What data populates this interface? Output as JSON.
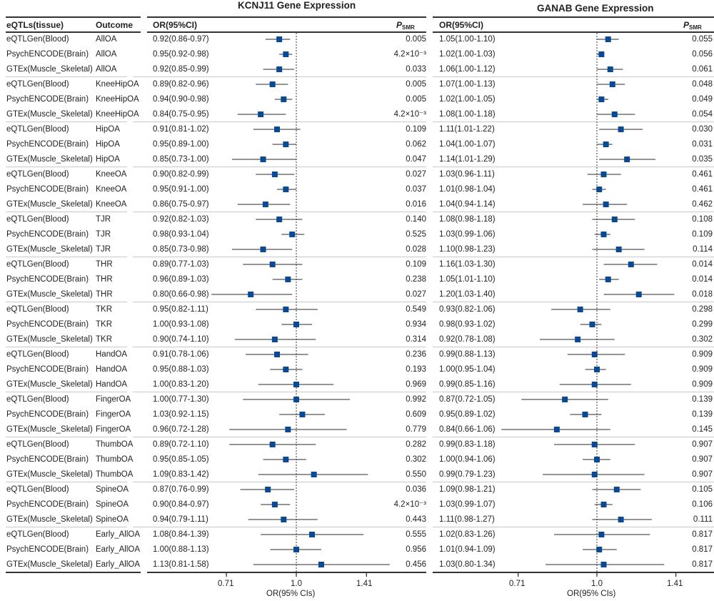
{
  "chart_data": {
    "type": "forest",
    "scale": "log",
    "reference_line": 1.0,
    "marker_color": "#0a4a94",
    "columns": {
      "tissue": "eQTLs(tissue)",
      "outcome": "Outcome",
      "or": "OR(95%CI)",
      "p": "P",
      "p_sub": "SMR"
    },
    "panels": [
      {
        "title": "KCNJ11 Gene Expression",
        "xlabel": "OR(95% CIs)",
        "ticks": [
          0.71,
          1.0,
          1.41
        ],
        "tick_labels": [
          "0.71",
          "1.0",
          "1.41"
        ]
      },
      {
        "title": "GANAB Gene Expression",
        "xlabel": "OR(95% CIs)",
        "ticks": [
          0.71,
          1.0,
          1.41
        ],
        "tick_labels": [
          "0.71",
          "1.0",
          "1.41"
        ]
      }
    ],
    "rows": [
      {
        "tissue": "eQTLGen(Blood)",
        "outcome": "AllOA",
        "k": {
          "or": 0.92,
          "lo": 0.86,
          "hi": 0.97,
          "label": "0.92(0.86-0.97)",
          "p": "0.005"
        },
        "g": {
          "or": 1.05,
          "lo": 1.0,
          "hi": 1.1,
          "label": "1.05(1.00-1.10)",
          "p": "0.055"
        }
      },
      {
        "tissue": "PsychENCODE(Brain)",
        "outcome": "AllOA",
        "k": {
          "or": 0.95,
          "lo": 0.92,
          "hi": 0.98,
          "label": "0.95(0.92-0.98)",
          "p": "4.2×10⁻³"
        },
        "g": {
          "or": 1.02,
          "lo": 1.0,
          "hi": 1.03,
          "label": "1.02(1.00-1.03)",
          "p": "0.056"
        }
      },
      {
        "tissue": "GTEx(Muscle_Skeletal)",
        "outcome": "AllOA",
        "k": {
          "or": 0.92,
          "lo": 0.85,
          "hi": 0.99,
          "label": "0.92(0.85-0.99)",
          "p": "0.033"
        },
        "g": {
          "or": 1.06,
          "lo": 1.0,
          "hi": 1.12,
          "label": "1.06(1.00-1.12)",
          "p": "0.061"
        }
      },
      {
        "tissue": "eQTLGen(Blood)",
        "outcome": "KneeHipOA",
        "k": {
          "or": 0.89,
          "lo": 0.82,
          "hi": 0.96,
          "label": "0.89(0.82-0.96)",
          "p": "0.005"
        },
        "g": {
          "or": 1.07,
          "lo": 1.0,
          "hi": 1.13,
          "label": "1.07(1.00-1.13)",
          "p": "0.048"
        }
      },
      {
        "tissue": "PsychENCODE(Brain)",
        "outcome": "KneeHipOA",
        "k": {
          "or": 0.94,
          "lo": 0.9,
          "hi": 0.98,
          "label": "0.94(0.90-0.98)",
          "p": "0.005"
        },
        "g": {
          "or": 1.02,
          "lo": 1.0,
          "hi": 1.05,
          "label": "1.02(1.00-1.05)",
          "p": "0.049"
        }
      },
      {
        "tissue": "GTEx(Muscle_Skeletal)",
        "outcome": "KneeHipOA",
        "k": {
          "or": 0.84,
          "lo": 0.75,
          "hi": 0.95,
          "label": "0.84(0.75-0.95)",
          "p": "4.2×10⁻³"
        },
        "g": {
          "or": 1.08,
          "lo": 1.0,
          "hi": 1.18,
          "label": "1.08(1.00-1.18)",
          "p": "0.054"
        }
      },
      {
        "tissue": "eQTLGen(Blood)",
        "outcome": "HipOA",
        "k": {
          "or": 0.91,
          "lo": 0.81,
          "hi": 1.02,
          "label": "0.91(0.81-1.02)",
          "p": "0.109"
        },
        "g": {
          "or": 1.11,
          "lo": 1.01,
          "hi": 1.22,
          "label": "1.11(1.01-1.22)",
          "p": "0.030"
        }
      },
      {
        "tissue": "PsychENCODE(Brain)",
        "outcome": "HipOA",
        "k": {
          "or": 0.95,
          "lo": 0.89,
          "hi": 1.0,
          "label": "0.95(0.89-1.00)",
          "p": "0.062"
        },
        "g": {
          "or": 1.04,
          "lo": 1.0,
          "hi": 1.07,
          "label": "1.04(1.00-1.07)",
          "p": "0.031"
        }
      },
      {
        "tissue": "GTEx(Muscle_Skeletal)",
        "outcome": "HipOA",
        "k": {
          "or": 0.85,
          "lo": 0.73,
          "hi": 1.0,
          "label": "0.85(0.73-1.00)",
          "p": "0.047"
        },
        "g": {
          "or": 1.14,
          "lo": 1.01,
          "hi": 1.29,
          "label": "1.14(1.01-1.29)",
          "p": "0.035"
        }
      },
      {
        "tissue": "eQTLGen(Blood)",
        "outcome": "KneeOA",
        "k": {
          "or": 0.9,
          "lo": 0.82,
          "hi": 0.99,
          "label": "0.90(0.82-0.99)",
          "p": "0.027"
        },
        "g": {
          "or": 1.03,
          "lo": 0.96,
          "hi": 1.11,
          "label": "1.03(0.96-1.11)",
          "p": "0.461"
        }
      },
      {
        "tissue": "PsychENCODE(Brain)",
        "outcome": "KneeOA",
        "k": {
          "or": 0.95,
          "lo": 0.91,
          "hi": 1.0,
          "label": "0.95(0.91-1.00)",
          "p": "0.037"
        },
        "g": {
          "or": 1.01,
          "lo": 0.98,
          "hi": 1.04,
          "label": "1.01(0.98-1.04)",
          "p": "0.461"
        }
      },
      {
        "tissue": "GTEx(Muscle_Skeletal)",
        "outcome": "KneeOA",
        "k": {
          "or": 0.86,
          "lo": 0.75,
          "hi": 0.97,
          "label": "0.86(0.75-0.97)",
          "p": "0.016"
        },
        "g": {
          "or": 1.04,
          "lo": 0.94,
          "hi": 1.14,
          "label": "1.04(0.94-1.14)",
          "p": "0.462"
        }
      },
      {
        "tissue": "eQTLGen(Blood)",
        "outcome": "TJR",
        "k": {
          "or": 0.92,
          "lo": 0.82,
          "hi": 1.03,
          "label": "0.92(0.82-1.03)",
          "p": "0.140"
        },
        "g": {
          "or": 1.08,
          "lo": 0.98,
          "hi": 1.18,
          "label": "1.08(0.98-1.18)",
          "p": "0.108"
        }
      },
      {
        "tissue": "PsychENCODE(Brain)",
        "outcome": "TJR",
        "k": {
          "or": 0.98,
          "lo": 0.93,
          "hi": 1.04,
          "label": "0.98(0.93-1.04)",
          "p": "0.525"
        },
        "g": {
          "or": 1.03,
          "lo": 0.99,
          "hi": 1.06,
          "label": "1.03(0.99-1.06)",
          "p": "0.109"
        }
      },
      {
        "tissue": "GTEx(Muscle_Skeletal)",
        "outcome": "TJR",
        "k": {
          "or": 0.85,
          "lo": 0.73,
          "hi": 0.98,
          "label": "0.85(0.73-0.98)",
          "p": "0.028"
        },
        "g": {
          "or": 1.1,
          "lo": 0.98,
          "hi": 1.23,
          "label": "1.10(0.98-1.23)",
          "p": "0.114"
        }
      },
      {
        "tissue": "eQTLGen(Blood)",
        "outcome": "THR",
        "k": {
          "or": 0.89,
          "lo": 0.77,
          "hi": 1.03,
          "label": "0.89(0.77-1.03)",
          "p": "0.109"
        },
        "g": {
          "or": 1.16,
          "lo": 1.03,
          "hi": 1.3,
          "label": "1.16(1.03-1.30)",
          "p": "0.014"
        }
      },
      {
        "tissue": "PsychENCODE(Brain)",
        "outcome": "THR",
        "k": {
          "or": 0.96,
          "lo": 0.89,
          "hi": 1.03,
          "label": "0.96(0.89-1.03)",
          "p": "0.238"
        },
        "g": {
          "or": 1.05,
          "lo": 1.01,
          "hi": 1.1,
          "label": "1.05(1.01-1.10)",
          "p": "0.014"
        }
      },
      {
        "tissue": "GTEx(Muscle_Skeletal)",
        "outcome": "THR",
        "k": {
          "or": 0.8,
          "lo": 0.66,
          "hi": 0.98,
          "label": "0.80(0.66-0.98)",
          "p": "0.027"
        },
        "g": {
          "or": 1.2,
          "lo": 1.03,
          "hi": 1.4,
          "label": "1.20(1.03-1.40)",
          "p": "0.018"
        }
      },
      {
        "tissue": "eQTLGen(Blood)",
        "outcome": "TKR",
        "k": {
          "or": 0.95,
          "lo": 0.82,
          "hi": 1.11,
          "label": "0.95(0.82-1.11)",
          "p": "0.549"
        },
        "g": {
          "or": 0.93,
          "lo": 0.82,
          "hi": 1.06,
          "label": "0.93(0.82-1.06)",
          "p": "0.298"
        }
      },
      {
        "tissue": "PsychENCODE(Brain)",
        "outcome": "TKR",
        "k": {
          "or": 1.0,
          "lo": 0.93,
          "hi": 1.08,
          "label": "1.00(0.93-1.08)",
          "p": "0.934"
        },
        "g": {
          "or": 0.98,
          "lo": 0.93,
          "hi": 1.02,
          "label": "0.98(0.93-1.02)",
          "p": "0.299"
        }
      },
      {
        "tissue": "GTEx(Muscle_Skeletal)",
        "outcome": "TKR",
        "k": {
          "or": 0.9,
          "lo": 0.74,
          "hi": 1.1,
          "label": "0.90(0.74-1.10)",
          "p": "0.314"
        },
        "g": {
          "or": 0.92,
          "lo": 0.78,
          "hi": 1.08,
          "label": "0.92(0.78-1.08)",
          "p": "0.302"
        }
      },
      {
        "tissue": "eQTLGen(Blood)",
        "outcome": "HandOA",
        "k": {
          "or": 0.91,
          "lo": 0.78,
          "hi": 1.06,
          "label": "0.91(0.78-1.06)",
          "p": "0.236"
        },
        "g": {
          "or": 0.99,
          "lo": 0.88,
          "hi": 1.13,
          "label": "0.99(0.88-1.13)",
          "p": "0.909"
        }
      },
      {
        "tissue": "PsychENCODE(Brain)",
        "outcome": "HandOA",
        "k": {
          "or": 0.95,
          "lo": 0.88,
          "hi": 1.03,
          "label": "0.95(0.88-1.03)",
          "p": "0.193"
        },
        "g": {
          "or": 1.0,
          "lo": 0.95,
          "hi": 1.04,
          "label": "1.00(0.95-1.04)",
          "p": "0.909"
        }
      },
      {
        "tissue": "GTEx(Muscle_Skeletal)",
        "outcome": "HandOA",
        "k": {
          "or": 1.0,
          "lo": 0.83,
          "hi": 1.2,
          "label": "1.00(0.83-1.20)",
          "p": "0.969"
        },
        "g": {
          "or": 0.99,
          "lo": 0.85,
          "hi": 1.16,
          "label": "0.99(0.85-1.16)",
          "p": "0.909"
        }
      },
      {
        "tissue": "eQTLGen(Blood)",
        "outcome": "FingerOA",
        "k": {
          "or": 1.0,
          "lo": 0.77,
          "hi": 1.3,
          "label": "1.00(0.77-1.30)",
          "p": "0.992"
        },
        "g": {
          "or": 0.87,
          "lo": 0.72,
          "hi": 1.05,
          "label": "0.87(0.72-1.05)",
          "p": "0.139"
        }
      },
      {
        "tissue": "PsychENCODE(Brain)",
        "outcome": "FingerOA",
        "k": {
          "or": 1.03,
          "lo": 0.92,
          "hi": 1.15,
          "label": "1.03(0.92-1.15)",
          "p": "0.609"
        },
        "g": {
          "or": 0.95,
          "lo": 0.89,
          "hi": 1.02,
          "label": "0.95(0.89-1.02)",
          "p": "0.139"
        }
      },
      {
        "tissue": "GTEx(Muscle_Skeletal)",
        "outcome": "FingerOA",
        "k": {
          "or": 0.96,
          "lo": 0.72,
          "hi": 1.28,
          "label": "0.96(0.72-1.28)",
          "p": "0.779"
        },
        "g": {
          "or": 0.84,
          "lo": 0.66,
          "hi": 1.06,
          "label": "0.84(0.66-1.06)",
          "p": "0.145"
        }
      },
      {
        "tissue": "eQTLGen(Blood)",
        "outcome": "ThumbOA",
        "k": {
          "or": 0.89,
          "lo": 0.72,
          "hi": 1.1,
          "label": "0.89(0.72-1.10)",
          "p": "0.282"
        },
        "g": {
          "or": 0.99,
          "lo": 0.83,
          "hi": 1.18,
          "label": "0.99(0.83-1.18)",
          "p": "0.907"
        }
      },
      {
        "tissue": "PsychENCODE(Brain)",
        "outcome": "ThumbOA",
        "k": {
          "or": 0.95,
          "lo": 0.85,
          "hi": 1.05,
          "label": "0.95(0.85-1.05)",
          "p": "0.302"
        },
        "g": {
          "or": 1.0,
          "lo": 0.94,
          "hi": 1.06,
          "label": "1.00(0.94-1.06)",
          "p": "0.907"
        }
      },
      {
        "tissue": "GTEx(Muscle_Skeletal)",
        "outcome": "ThumbOA",
        "k": {
          "or": 1.09,
          "lo": 0.83,
          "hi": 1.42,
          "label": "1.09(0.83-1.42)",
          "p": "0.550"
        },
        "g": {
          "or": 0.99,
          "lo": 0.79,
          "hi": 1.23,
          "label": "0.99(0.79-1.23)",
          "p": "0.907"
        }
      },
      {
        "tissue": "eQTLGen(Blood)",
        "outcome": "SpineOA",
        "k": {
          "or": 0.87,
          "lo": 0.76,
          "hi": 0.99,
          "label": "0.87(0.76-0.99)",
          "p": "0.036"
        },
        "g": {
          "or": 1.09,
          "lo": 0.98,
          "hi": 1.21,
          "label": "1.09(0.98-1.21)",
          "p": "0.105"
        }
      },
      {
        "tissue": "PsychENCODE(Brain)",
        "outcome": "SpineOA",
        "k": {
          "or": 0.9,
          "lo": 0.84,
          "hi": 0.97,
          "label": "0.90(0.84-0.97)",
          "p": "4.2×10⁻³"
        },
        "g": {
          "or": 1.03,
          "lo": 0.99,
          "hi": 1.07,
          "label": "1.03(0.99-1.07)",
          "p": "0.106"
        }
      },
      {
        "tissue": "GTEx(Muscle_Skeletal)",
        "outcome": "SpineOA",
        "k": {
          "or": 0.94,
          "lo": 0.79,
          "hi": 1.11,
          "label": "0.94(0.79-1.11)",
          "p": "0.443"
        },
        "g": {
          "or": 1.11,
          "lo": 0.98,
          "hi": 1.27,
          "label": "1.11(0.98-1.27)",
          "p": "0.111"
        }
      },
      {
        "tissue": "eQTLGen(Blood)",
        "outcome": "Early_AllOA",
        "k": {
          "or": 1.08,
          "lo": 0.84,
          "hi": 1.39,
          "label": "1.08(0.84-1.39)",
          "p": "0.555"
        },
        "g": {
          "or": 1.02,
          "lo": 0.83,
          "hi": 1.26,
          "label": "1.02(0.83-1.26)",
          "p": "0.817"
        }
      },
      {
        "tissue": "PsychENCODE(Brain)",
        "outcome": "Early_AllOA",
        "k": {
          "or": 1.0,
          "lo": 0.88,
          "hi": 1.13,
          "label": "1.00(0.88-1.13)",
          "p": "0.956"
        },
        "g": {
          "or": 1.01,
          "lo": 0.94,
          "hi": 1.09,
          "label": "1.01(0.94-1.09)",
          "p": "0.817"
        }
      },
      {
        "tissue": "GTEx(Muscle_Skeletal)",
        "outcome": "Early_AllOA",
        "k": {
          "or": 1.13,
          "lo": 0.81,
          "hi": 1.58,
          "label": "1.13(0.81-1.58)",
          "p": "0.456"
        },
        "g": {
          "or": 1.03,
          "lo": 0.8,
          "hi": 1.34,
          "label": "1.03(0.80-1.34)",
          "p": "0.817"
        }
      }
    ]
  }
}
